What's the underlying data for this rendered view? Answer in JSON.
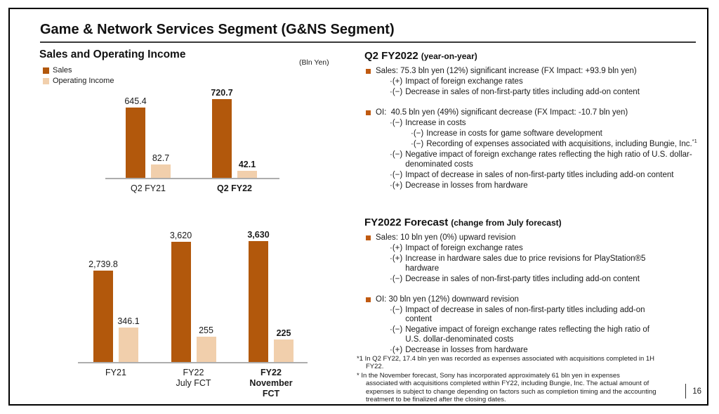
{
  "slide": {
    "title": "Game & Network Services Segment (G&NS Segment)",
    "page_number": "16"
  },
  "left": {
    "section_title": "Sales and Operating Income",
    "unit_label": "(Bln Yen)"
  },
  "chart_data": [
    {
      "type": "bar",
      "title": "Sales and Operating Income — Quarterly (Bln Yen)",
      "categories": [
        [
          "Q2 FY21"
        ],
        [
          "Q2 FY22"
        ]
      ],
      "emphasis": [
        false,
        true
      ],
      "series": [
        {
          "name": "Sales",
          "color": "#B2580C",
          "values": [
            645.4,
            720.7
          ],
          "labels": [
            "645.4",
            "720.7"
          ]
        },
        {
          "name": "Operating Income",
          "color": "#F1CFAC",
          "values": [
            82.7,
            42.1
          ],
          "labels": [
            "82.7",
            "42.1"
          ]
        }
      ],
      "legend_position": "top-left",
      "grid": false,
      "note": "Operating Income bars drawn on an enlarged secondary scale"
    },
    {
      "type": "bar",
      "title": "Sales and Operating Income — Fiscal Year (Bln Yen)",
      "categories": [
        [
          "FY21"
        ],
        [
          "FY22",
          "July FCT"
        ],
        [
          "FY22",
          "November FCT"
        ]
      ],
      "emphasis": [
        false,
        false,
        true
      ],
      "series": [
        {
          "name": "Sales",
          "color": "#B2580C",
          "values": [
            2739.8,
            3620,
            3630
          ],
          "labels": [
            "2,739.8",
            "3,620",
            "3,630"
          ]
        },
        {
          "name": "Operating Income",
          "color": "#F1CFAC",
          "values": [
            346.1,
            255,
            225
          ],
          "labels": [
            "346.1",
            "255",
            "225"
          ]
        }
      ],
      "legend_position": "top-left",
      "grid": false,
      "note": "Operating Income bars drawn on an enlarged secondary scale"
    }
  ],
  "right": {
    "sections": [
      {
        "heading": "Q2 FY2022",
        "heading_note": "(year-on-year)",
        "groups": [
          {
            "headline": "Sales: 75.3 bln yen (12%) significant increase (FX Impact: +93.9 bln yen)",
            "items": [
              {
                "m": "·(+)",
                "t": "Impact of foreign exchange rates",
                "i": 1
              },
              {
                "m": "·(−)",
                "t": "Decrease in sales of non-first-party titles including add-on content",
                "i": 1
              }
            ]
          },
          {
            "headline": "OI:  40.5 bln yen (49%) significant decrease (FX Impact: -10.7 bln yen)",
            "items": [
              {
                "m": "·(−)",
                "t": "Increase in costs",
                "i": 1
              },
              {
                "m": "·(−)",
                "t": "Increase in costs for game software development",
                "i": 2
              },
              {
                "m": "·(−)",
                "t": "Recording of expenses associated with acquisitions, including Bungie, Inc.",
                "sup": "*1",
                "i": 2
              },
              {
                "m": "·(−)",
                "t": "Negative impact of foreign exchange rates reflecting the high ratio of U.S. dollar-\ndenominated costs",
                "i": 1
              },
              {
                "m": "·(−)",
                "t": "Impact of decrease in sales of non-first-party titles including add-on content",
                "i": 1
              },
              {
                "m": "·(+)",
                "t": "Decrease in losses from hardware",
                "i": 1
              }
            ]
          }
        ]
      },
      {
        "heading": "FY2022 Forecast",
        "heading_note": "(change from July forecast)",
        "groups": [
          {
            "headline": "Sales: 10 bln yen (0%) upward revision",
            "items": [
              {
                "m": "·(+)",
                "t": "Impact of foreign exchange rates",
                "i": 1
              },
              {
                "m": "·(+)",
                "t": "Increase in hardware sales due to price revisions for PlayStation®5\nhardware",
                "i": 1
              },
              {
                "m": "·(−)",
                "t": "Decrease in sales of non-first-party titles including add-on content",
                "i": 1
              }
            ]
          },
          {
            "headline": "OI: 30 bln yen (12%) downward revision",
            "items": [
              {
                "m": "·(−)",
                "t": "Impact of decrease in sales of non-first-party titles including add-on\ncontent",
                "i": 1
              },
              {
                "m": "·(−)",
                "t": "Negative impact of foreign exchange rates reflecting the high ratio of\nU.S. dollar-denominated costs",
                "i": 1
              },
              {
                "m": "·(+)",
                "t": "Decrease in losses from hardware",
                "i": 1
              }
            ]
          }
        ]
      }
    ],
    "footnotes": [
      {
        "m": "*1",
        "t": "In Q2 FY22, 17.4 bln yen was recorded as expenses associated with acquisitions completed in 1H\nFY22."
      },
      {
        "m": "*",
        "t": "In the November forecast, Sony has incorporated approximately 61 bln yen in expenses\nassociated with acquisitions completed within FY22, including Bungie, Inc. The actual amount of\nexpenses is subject to change depending on factors such as completion timing and the accounting\ntreatment to be finalized after the closing dates."
      }
    ]
  },
  "colors": {
    "sales_bar": "#B2580C",
    "operating_income_bar": "#F1CFAC",
    "bullet": "#C05A11",
    "axis_line": "#ADADAD"
  }
}
